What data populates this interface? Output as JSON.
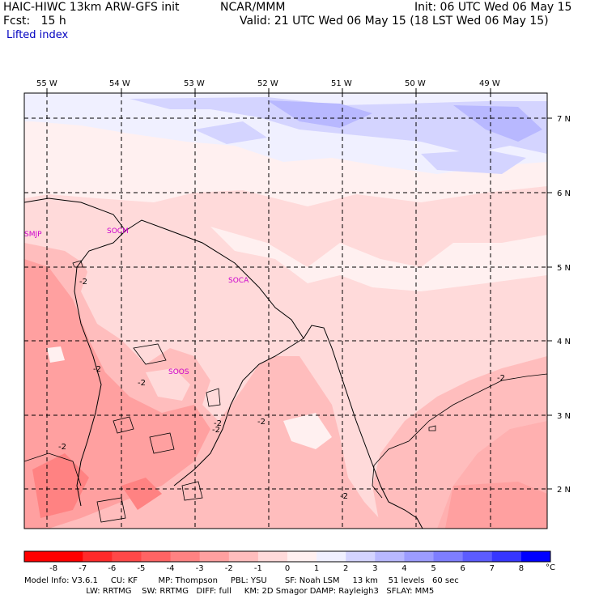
{
  "header": {
    "model": "HAIC-HIWC 13km ARW-GFS init",
    "org": "NCAR/MMM",
    "init": "Init: 06 UTC Wed 06 May 15",
    "fcst": "Fcst:   15 h",
    "valid": "Valid: 21 UTC Wed 06 May 15 (18 LST Wed 06 May 15)",
    "field": "Lifted index"
  },
  "map": {
    "lon_labels": [
      "55 W",
      "54 W",
      "53 W",
      "52 W",
      "51 W",
      "50 W",
      "49 W"
    ],
    "lat_labels": [
      "7 N",
      "6 N",
      "5 N",
      "4 N",
      "3 N",
      "2 N"
    ],
    "places": [
      "SMJP",
      "SOCM",
      "SOCA",
      "SOOS"
    ],
    "contour_labels": [
      "-2",
      "-2",
      "-2",
      "-2",
      "-2",
      "-2",
      "-2",
      "-2",
      "-2"
    ]
  },
  "colorbar": {
    "labels": [
      "-8",
      "-7",
      "-6",
      "-5",
      "-4",
      "-3",
      "-2",
      "-1",
      "0",
      "1",
      "2",
      "3",
      "4",
      "5",
      "6",
      "7",
      "8"
    ],
    "unit": "°C",
    "colors": [
      "#ff0000",
      "#ff2a2a",
      "#ff4848",
      "#ff6464",
      "#ff8282",
      "#ffa0a0",
      "#ffbdbd",
      "#ffdada",
      "#fff0f0",
      "#f0f0ff",
      "#d4d4ff",
      "#b8b8ff",
      "#9c9cff",
      "#7e7eff",
      "#5c5cff",
      "#3636ff",
      "#0000ff"
    ]
  },
  "footer": {
    "line1": "Model Info: V3.6.1     CU: KF        MP: Thompson     PBL: YSU       SF: Noah LSM     13 km    51 levels   60 sec",
    "line2": "                        LW: RRTMG    SW: RRTMG   DIFF: full     KM: 2D Smagor DAMP: Rayleigh3   SFLAY: MM5"
  }
}
